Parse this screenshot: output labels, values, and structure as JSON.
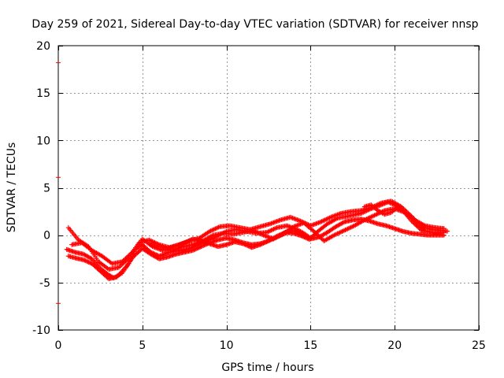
{
  "chart_data": {
    "type": "scatter",
    "title": "Day 259 of 2021, Sidereal Day-to-day VTEC variation (SDTVAR) for receiver nnsp",
    "xlabel": "GPS time / hours",
    "ylabel": "SDTVAR / TECUs",
    "xlim": [
      0,
      25
    ],
    "ylim": [
      -10,
      20
    ],
    "x_ticks": [
      0,
      5,
      10,
      15,
      20,
      25
    ],
    "y_ticks": [
      -10,
      -5,
      0,
      5,
      10,
      15,
      20
    ],
    "grid": true,
    "marker": "+",
    "color": "#ff0000",
    "edge_marks": [
      18.2,
      6.1,
      -7.2
    ],
    "tracks": [
      {
        "x": [
          0.5,
          1.0,
          1.5,
          2.0,
          2.5,
          3.0,
          3.3,
          3.8,
          4.2,
          4.6,
          5.0,
          5.5,
          6.0,
          6.6,
          7.2,
          7.8,
          8.5,
          9.2,
          10.0,
          10.6,
          11.2,
          11.8,
          12.4,
          13.0,
          13.6,
          14.2,
          14.6,
          15.0,
          15.5,
          16.0,
          16.6,
          17.2,
          18.0,
          18.6,
          19.2,
          19.6,
          20.0,
          20.4,
          21.0,
          21.6,
          22.2,
          23.0
        ],
        "y": [
          -1.5,
          -1.8,
          -2.0,
          -2.5,
          -3.5,
          -4.2,
          -4.5,
          -4.0,
          -3.0,
          -1.5,
          -1.0,
          -1.8,
          -2.2,
          -1.8,
          -1.6,
          -1.4,
          -0.9,
          -0.3,
          0.4,
          0.6,
          0.4,
          0.2,
          0.3,
          0.8,
          1.0,
          0.6,
          0.2,
          -0.3,
          0.5,
          1.2,
          1.8,
          2.0,
          2.3,
          2.8,
          3.2,
          3.5,
          3.2,
          2.8,
          1.5,
          0.5,
          0.3,
          0.3
        ]
      },
      {
        "x": [
          0.6,
          1.0,
          1.5,
          2.0,
          2.5,
          3.0,
          3.5,
          4.0,
          4.5,
          5.0,
          5.5,
          6.0,
          6.5,
          7.0,
          7.5,
          8.0,
          8.5,
          9.0,
          9.5,
          10.0,
          10.5,
          11.0,
          11.5,
          12.0,
          12.5,
          13.0,
          13.5,
          14.0,
          14.5,
          15.0,
          15.5,
          16.0,
          16.5,
          17.0,
          17.5,
          18.0,
          18.5,
          19.0,
          19.5,
          20.0,
          20.5,
          21.0,
          21.5,
          22.0,
          22.5,
          23.0
        ],
        "y": [
          -2.2,
          -2.4,
          -2.6,
          -3.0,
          -3.8,
          -4.6,
          -4.4,
          -3.4,
          -2.2,
          -1.4,
          -2.0,
          -2.5,
          -2.3,
          -2.0,
          -1.8,
          -1.6,
          -1.2,
          -0.8,
          -0.5,
          -0.3,
          -0.5,
          -0.8,
          -1.0,
          -0.9,
          -0.6,
          -0.2,
          0.2,
          0.5,
          0.0,
          -0.4,
          -0.2,
          0.3,
          0.9,
          1.4,
          1.6,
          1.7,
          1.5,
          1.2,
          1.0,
          0.7,
          0.4,
          0.2,
          0.1,
          0.0,
          0.0,
          0.0
        ]
      },
      {
        "x": [
          0.6,
          1.2,
          1.8,
          2.4,
          3.0,
          3.6,
          4.2,
          4.8,
          5.4,
          6.0,
          6.6,
          7.2,
          7.8,
          8.4,
          9.0,
          9.6,
          10.2,
          10.8,
          11.4,
          12.0,
          12.6,
          13.2,
          13.8,
          14.4,
          15.0,
          15.6,
          16.2,
          16.8,
          17.4,
          18.0,
          18.6,
          19.2,
          19.8,
          20.4,
          21.0,
          21.6,
          22.2,
          22.8,
          23.2
        ],
        "y": [
          0.8,
          -0.5,
          -1.2,
          -2.8,
          -3.6,
          -3.4,
          -2.4,
          -0.8,
          -0.5,
          -1.0,
          -1.3,
          -1.0,
          -0.6,
          -0.3,
          0.4,
          0.9,
          1.0,
          0.8,
          0.6,
          0.9,
          1.2,
          1.6,
          1.9,
          1.5,
          1.0,
          1.4,
          1.9,
          2.3,
          2.5,
          2.6,
          2.9,
          3.4,
          3.6,
          3.0,
          2.0,
          0.9,
          0.6,
          0.5,
          0.4
        ]
      },
      {
        "x": [
          0.8,
          1.4,
          2.0,
          2.6,
          3.2,
          3.8,
          4.4,
          5.0,
          5.6,
          6.2,
          6.8,
          7.4,
          8.0,
          8.6,
          9.2,
          9.8,
          10.4,
          11.0,
          11.6,
          12.2,
          12.8,
          13.4,
          14.0,
          14.6,
          15.2,
          15.8,
          16.4,
          17.0,
          17.6,
          18.2,
          18.8,
          19.4,
          20.0,
          20.6,
          21.2,
          21.8,
          22.4,
          23.0
        ],
        "y": [
          -1.0,
          -0.8,
          -1.6,
          -2.2,
          -3.0,
          -2.8,
          -1.8,
          -0.4,
          -1.2,
          -1.6,
          -1.6,
          -1.2,
          -1.0,
          -0.6,
          0.0,
          0.2,
          0.1,
          0.3,
          0.5,
          0.0,
          -0.4,
          0.2,
          0.9,
          1.3,
          0.4,
          -0.6,
          0.0,
          0.5,
          1.0,
          1.6,
          2.1,
          2.6,
          2.8,
          2.4,
          1.6,
          1.0,
          0.8,
          0.7
        ]
      },
      {
        "x": [
          5.5,
          6.0,
          6.5,
          7.0,
          7.5,
          8.0,
          8.5,
          9.0,
          9.5,
          10.0,
          10.5,
          11.0,
          11.5,
          12.0,
          12.5,
          13.0,
          13.5,
          14.0,
          14.5,
          15.0
        ],
        "y": [
          -1.0,
          -1.2,
          -1.4,
          -1.1,
          -0.8,
          -0.4,
          -0.6,
          -0.9,
          -1.2,
          -1.0,
          -0.7,
          -0.9,
          -1.3,
          -1.0,
          -0.6,
          -0.1,
          0.3,
          0.2,
          -0.1,
          -0.5
        ]
      },
      {
        "x": [
          18.2,
          18.6,
          19.0,
          19.4,
          19.8,
          20.2,
          20.6,
          21.0,
          21.4,
          21.8
        ],
        "y": [
          3.0,
          3.2,
          2.6,
          2.2,
          2.4,
          3.0,
          2.4,
          1.8,
          1.0,
          0.5
        ]
      }
    ]
  }
}
